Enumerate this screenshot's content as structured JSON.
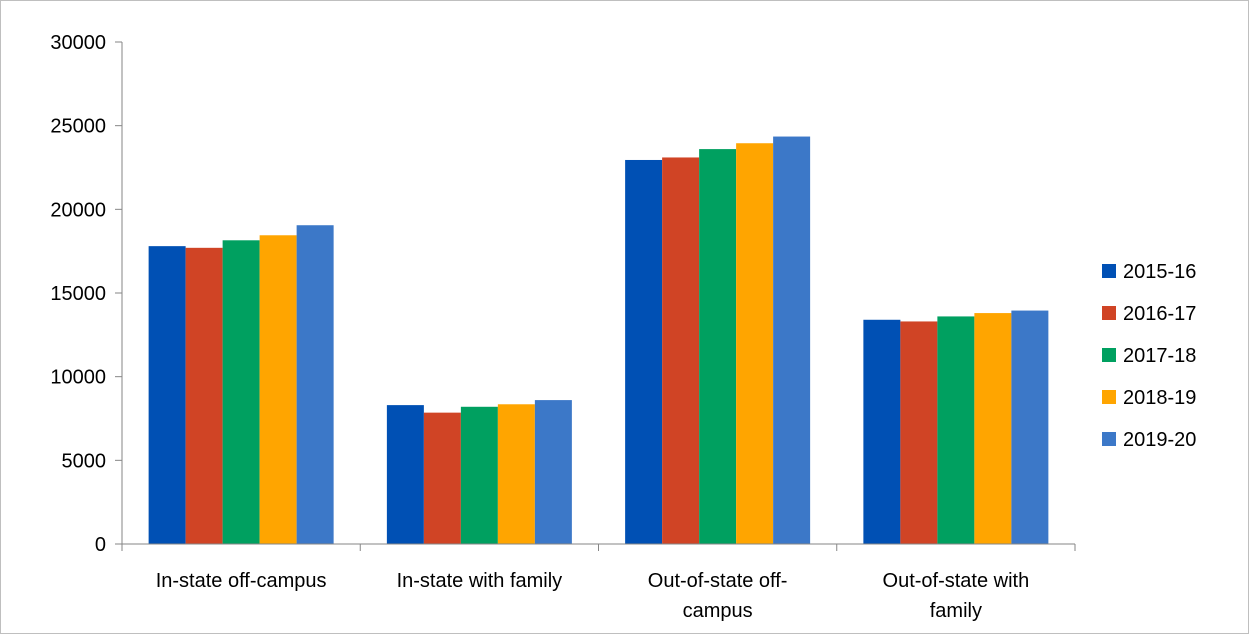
{
  "chart_data": {
    "type": "bar",
    "title": "",
    "xlabel": "",
    "ylabel": "",
    "ylim": [
      0,
      30000
    ],
    "yticks": [
      0,
      5000,
      10000,
      15000,
      20000,
      25000,
      30000
    ],
    "grid": false,
    "legend_position": "right",
    "categories": [
      [
        "In-state off-campus"
      ],
      [
        "In-state with family"
      ],
      [
        "Out-of-state off-",
        "campus"
      ],
      [
        "Out-of-state with",
        "family"
      ]
    ],
    "series": [
      {
        "name": "2015-16",
        "color": "#0050b4",
        "values": [
          17800,
          8300,
          22950,
          13400
        ]
      },
      {
        "name": "2016-17",
        "color": "#d04425",
        "values": [
          17700,
          7850,
          23100,
          13300
        ]
      },
      {
        "name": "2017-18",
        "color": "#00a060",
        "values": [
          18150,
          8200,
          23600,
          13600
        ]
      },
      {
        "name": "2018-19",
        "color": "#ffa500",
        "values": [
          18450,
          8350,
          23950,
          13800
        ]
      },
      {
        "name": "2019-20",
        "color": "#3c78c8",
        "values": [
          19050,
          8600,
          24350,
          13950
        ]
      }
    ]
  }
}
